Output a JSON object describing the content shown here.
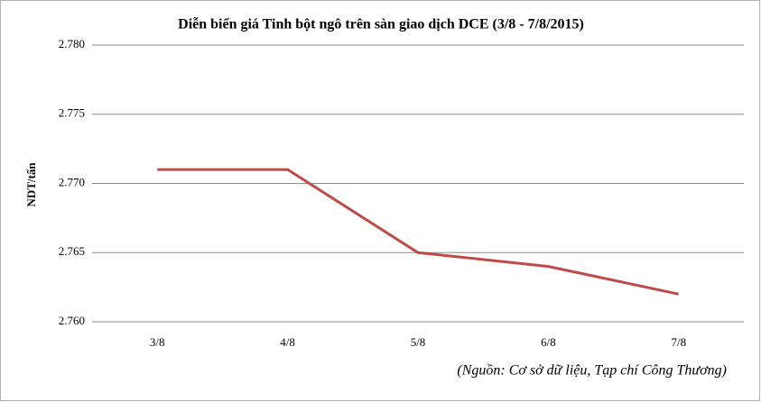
{
  "chart_data": {
    "type": "line",
    "title": "Diễn biến giá Tinh bột ngô trên sàn giao dịch DCE (3/8 - 7/8/2015)",
    "y_label": "NDT/tấn",
    "annotation": "(Nguồn: Cơ sở dữ liệu, Tạp chí Công Thương)",
    "categories": [
      "3/8",
      "4/8",
      "5/8",
      "6/8",
      "7/8"
    ],
    "series": [
      {
        "name": "Tinh bột ngô",
        "color": "#be4b48",
        "values": [
          2771,
          2771,
          2765,
          2764,
          2762
        ]
      }
    ],
    "ylim": [
      2760,
      2780
    ],
    "yticks": [
      {
        "value": 2760,
        "label": "2.760"
      },
      {
        "value": 2765,
        "label": "2.765"
      },
      {
        "value": 2770,
        "label": "2.770"
      },
      {
        "value": 2775,
        "label": "2.775"
      },
      {
        "value": 2780,
        "label": "2.780"
      }
    ],
    "grid": true,
    "legend": false
  }
}
